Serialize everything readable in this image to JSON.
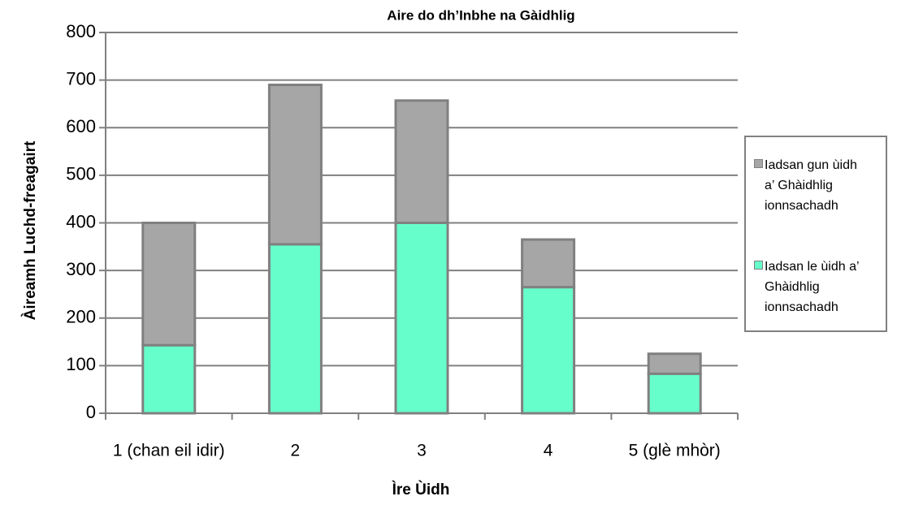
{
  "chart_data": {
    "type": "stacked_bar",
    "title": "Aire do dh’Inbhe na Gàidhlig",
    "x_label": "Ìre Ùidh",
    "y_label": "Àireamh Luchd-freagairt",
    "categories": [
      "1 (chan eil idir)",
      "2",
      "3",
      "4",
      "5 (glè mhòr)"
    ],
    "series": [
      {
        "name": "Iadsan le ùidh a’ Ghàidhlig ionnsachadh",
        "color": "#66ffcc",
        "values": [
          143,
          355,
          400,
          265,
          83
        ]
      },
      {
        "name": "Iadsan gun ùidh a’ Ghàidhlig ionnsachadh",
        "color": "#a6a6a6",
        "values": [
          257,
          335,
          257,
          100,
          42
        ]
      }
    ],
    "ylim": [
      0,
      800
    ],
    "yticks": [
      0,
      100,
      200,
      300,
      400,
      500,
      600,
      700,
      800
    ],
    "grid": true,
    "legend": "right"
  }
}
